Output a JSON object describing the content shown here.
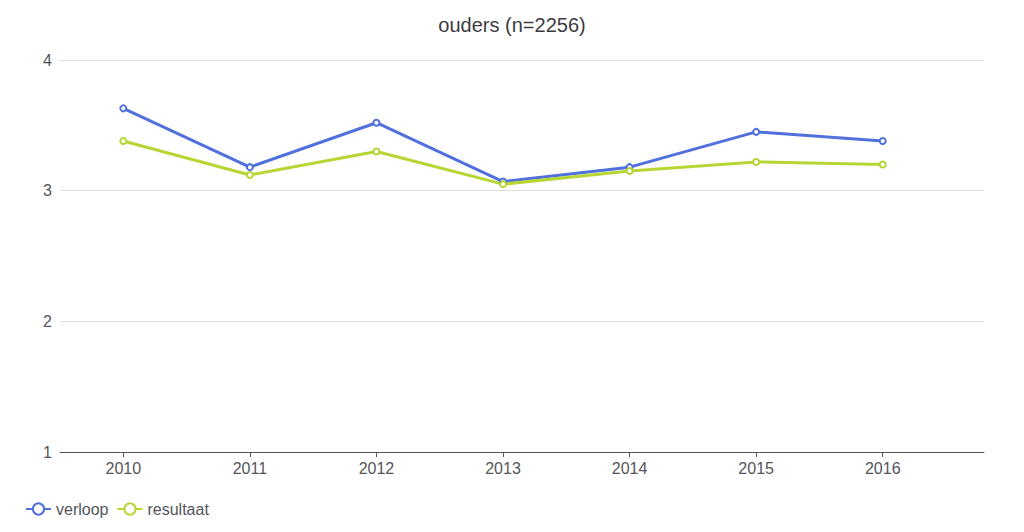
{
  "chart_data": {
    "type": "line",
    "title": "ouders (n=2256)",
    "x": [
      2010,
      2011,
      2012,
      2013,
      2014,
      2015,
      2016
    ],
    "series": [
      {
        "name": "verloop",
        "values": [
          3.63,
          3.18,
          3.52,
          3.07,
          3.18,
          3.45,
          3.38
        ]
      },
      {
        "name": "resultaat",
        "values": [
          3.38,
          3.12,
          3.3,
          3.05,
          3.15,
          3.22,
          3.2
        ]
      }
    ],
    "xlim": [
      2009.5,
      2016.8
    ],
    "xticks": [
      2010,
      2011,
      2012,
      2013,
      2014,
      2015,
      2016
    ],
    "ylim": [
      1,
      4
    ],
    "yticks": [
      1,
      2,
      3,
      4
    ],
    "grid": true,
    "legend": "lower left"
  }
}
